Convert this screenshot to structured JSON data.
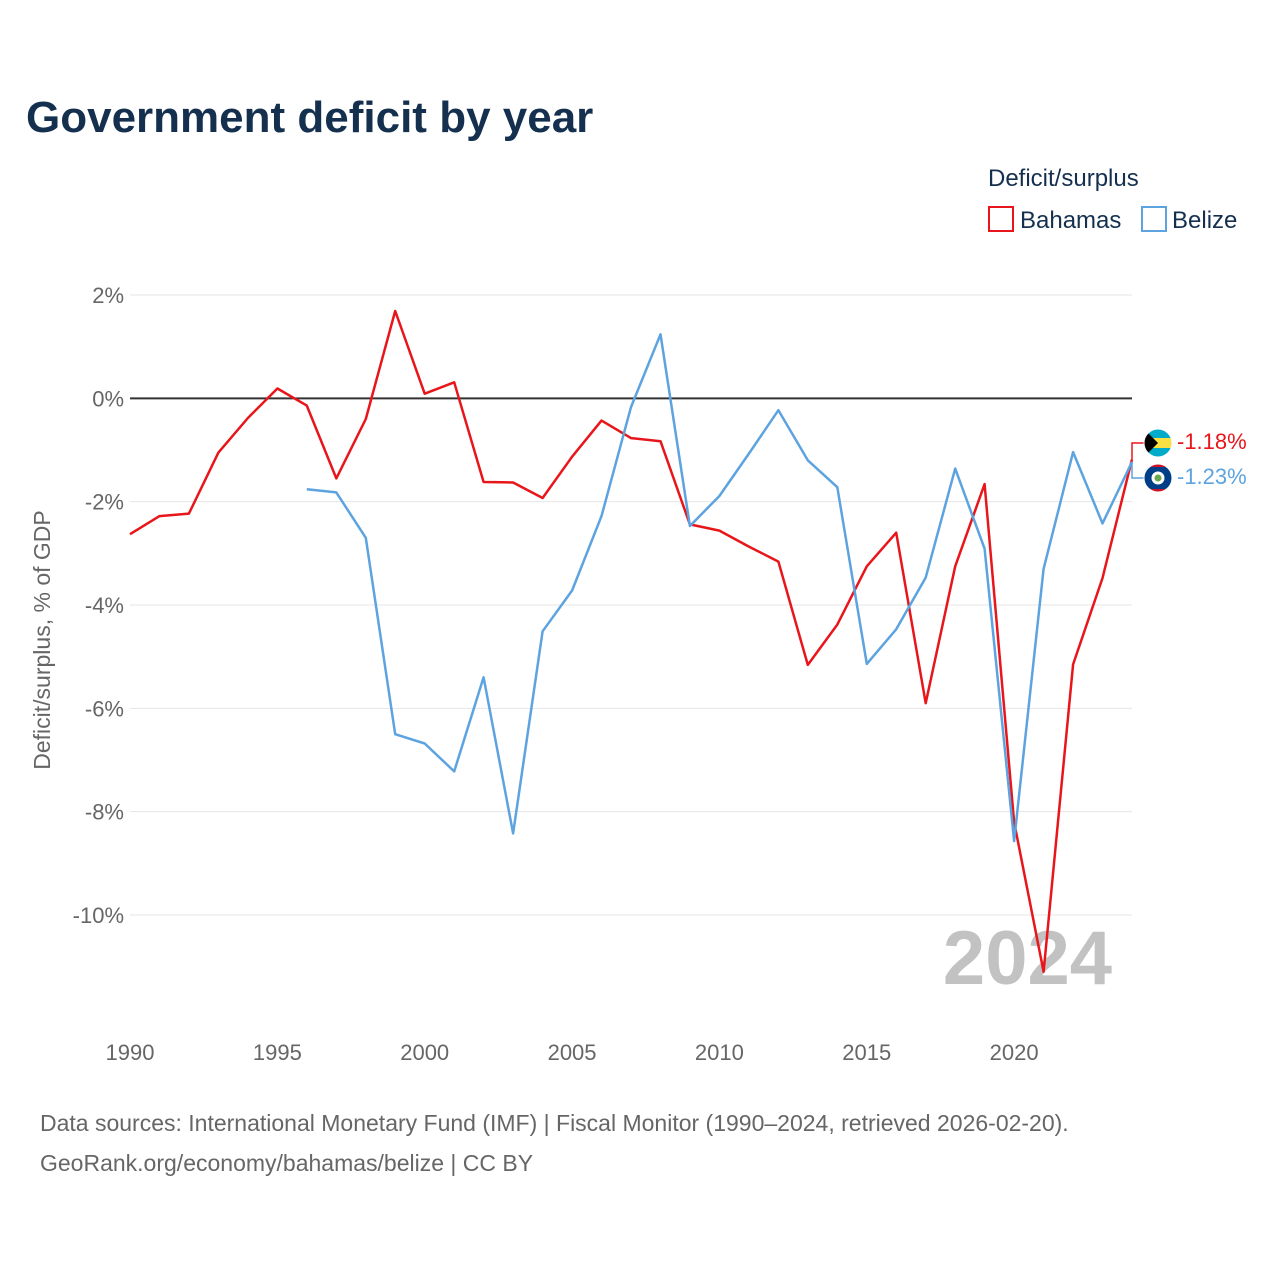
{
  "title": "Government deficit by year",
  "legend": {
    "title": "Deficit/surplus",
    "items": [
      {
        "label": "Bahamas",
        "color": "#e8161b"
      },
      {
        "label": "Belize",
        "color": "#5ca3e0"
      }
    ]
  },
  "year_label": "2024",
  "source_line1": "Data sources: International Monetary Fund (IMF) | Fiscal Monitor (1990–2024, retrieved 2026-02-20).",
  "source_line2": "GeoRank.org/economy/bahamas/belize | CC BY",
  "chart_data": {
    "type": "line",
    "title": "Government deficit by year",
    "xlabel": "",
    "ylabel": "Deficit/surplus, % of GDP",
    "xlim": [
      1990,
      2024
    ],
    "ylim": [
      -12,
      2
    ],
    "x_ticks": [
      1990,
      1995,
      2000,
      2005,
      2010,
      2015,
      2020
    ],
    "x_tick_labels": [
      "1990",
      "1995",
      "2000",
      "2005",
      "2010",
      "2015",
      "2020"
    ],
    "y_ticks": [
      2,
      0,
      -2,
      -4,
      -6,
      -8,
      -10
    ],
    "y_tick_labels": [
      "2%",
      "0%",
      "-2%",
      "-4%",
      "-6%",
      "-8%",
      "-10%"
    ],
    "zero_line": true,
    "grid": true,
    "legend_position": "top-right",
    "series": [
      {
        "name": "Bahamas",
        "color": "#e8161b",
        "end_label": "-1.18%",
        "x": [
          1990,
          1991,
          1992,
          1993,
          1994,
          1995,
          1996,
          1997,
          1998,
          1999,
          2000,
          2001,
          2002,
          2003,
          2004,
          2005,
          2006,
          2007,
          2008,
          2009,
          2010,
          2011,
          2012,
          2013,
          2014,
          2015,
          2016,
          2017,
          2018,
          2019,
          2020,
          2021,
          2022,
          2023,
          2024
        ],
        "values": [
          -2.63,
          -2.28,
          -2.23,
          -1.05,
          -0.38,
          0.19,
          -0.14,
          -1.55,
          -0.4,
          1.69,
          0.09,
          0.31,
          -1.62,
          -1.63,
          -1.93,
          -1.13,
          -0.43,
          -0.77,
          -0.83,
          -2.44,
          -2.56,
          -2.87,
          -3.16,
          -5.16,
          -4.38,
          -3.25,
          -2.6,
          -5.9,
          -3.25,
          -1.66,
          -8.2,
          -11.1,
          -5.15,
          -3.48,
          -1.18
        ]
      },
      {
        "name": "Belize",
        "color": "#5ca3e0",
        "end_label": "-1.23%",
        "x": [
          1996,
          1997,
          1998,
          1999,
          2000,
          2001,
          2002,
          2003,
          2004,
          2005,
          2006,
          2007,
          2008,
          2009,
          2010,
          2011,
          2012,
          2013,
          2014,
          2015,
          2016,
          2017,
          2018,
          2019,
          2020,
          2021,
          2022,
          2023,
          2024
        ],
        "values": [
          -1.76,
          -1.82,
          -2.7,
          -6.5,
          -6.68,
          -7.22,
          -5.4,
          -8.42,
          -4.51,
          -3.72,
          -2.28,
          -0.17,
          1.24,
          -2.47,
          -1.89,
          -1.07,
          -0.23,
          -1.2,
          -1.72,
          -5.14,
          -4.47,
          -3.47,
          -1.36,
          -2.91,
          -8.57,
          -3.3,
          -1.04,
          -2.42,
          -1.23
        ]
      }
    ]
  }
}
